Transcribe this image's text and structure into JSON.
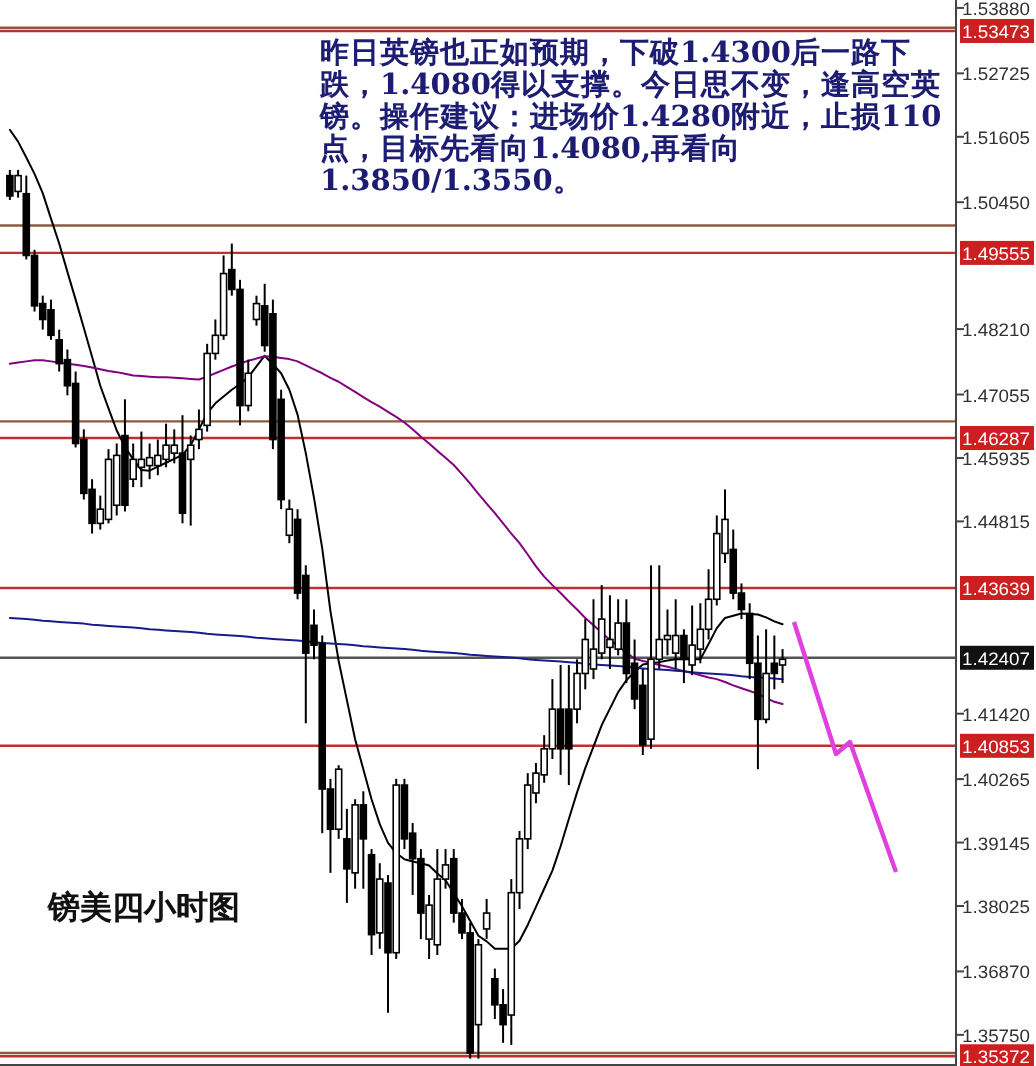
{
  "chart_data": {
    "type": "candlestick",
    "categories": [
      null,
      null,
      null,
      null,
      null,
      null,
      null,
      null,
      null,
      null,
      null,
      null,
      null,
      null,
      null,
      null,
      null,
      null,
      null,
      null,
      null,
      null,
      null,
      null,
      null,
      null,
      null,
      null,
      null,
      null,
      null,
      null,
      null,
      null,
      null,
      null,
      null,
      null,
      null,
      null,
      null,
      null,
      null,
      null,
      null,
      null,
      null,
      null,
      null,
      null,
      null,
      null,
      null,
      null,
      null,
      null,
      null,
      null,
      null,
      null,
      null,
      null,
      null,
      null,
      null,
      null,
      null,
      null,
      null,
      null,
      null,
      null,
      null,
      null,
      null,
      null,
      null,
      null,
      null,
      null,
      null,
      null,
      null,
      null,
      null,
      null,
      null,
      null,
      null,
      null,
      null,
      null,
      null,
      null,
      null
    ],
    "ohlc": [
      [
        1.5092,
        1.5102,
        1.5049,
        1.5056
      ],
      [
        1.5064,
        1.5102,
        1.5053,
        1.5092
      ],
      [
        1.506,
        1.5092,
        1.4944,
        1.4951
      ],
      [
        1.4951,
        1.4961,
        1.4852,
        1.4862
      ],
      [
        1.4866,
        1.488,
        1.482,
        1.4838
      ],
      [
        1.4855,
        1.4873,
        1.4802,
        1.481
      ],
      [
        1.4802,
        1.482,
        1.4746,
        1.476
      ],
      [
        1.4767,
        1.4785,
        1.4704,
        1.4721
      ],
      [
        1.4725,
        1.4746,
        1.4612,
        1.4619
      ],
      [
        1.4626,
        1.4644,
        1.452,
        1.4531
      ],
      [
        1.4538,
        1.4556,
        1.446,
        1.4478
      ],
      [
        1.4478,
        1.4527,
        1.4467,
        1.4503
      ],
      [
        1.4485,
        1.4609,
        1.4478,
        1.4591
      ],
      [
        1.451,
        1.4619,
        1.4492,
        1.4598
      ],
      [
        1.4633,
        1.4697,
        1.4499,
        1.451
      ],
      [
        1.4556,
        1.4619,
        1.4542,
        1.4591
      ],
      [
        1.4577,
        1.464,
        1.4542,
        1.4591
      ],
      [
        1.458,
        1.4619,
        1.4556,
        1.4594
      ],
      [
        1.458,
        1.4626,
        1.4563,
        1.4598
      ],
      [
        1.4591,
        1.4654,
        1.4577,
        1.4616
      ],
      [
        1.4602,
        1.4644,
        1.4584,
        1.4616
      ],
      [
        1.4602,
        1.4669,
        1.4478,
        1.4496
      ],
      [
        1.4591,
        1.4633,
        1.4474,
        1.4616
      ],
      [
        1.4626,
        1.4679,
        1.4609,
        1.4644
      ],
      [
        1.4651,
        1.4795,
        1.464,
        1.4778
      ],
      [
        1.4778,
        1.4838,
        1.4767,
        1.481
      ],
      [
        1.481,
        1.4951,
        1.4802,
        1.4919
      ],
      [
        1.4926,
        1.4972,
        1.488,
        1.4891
      ],
      [
        1.4891,
        1.4908,
        1.4651,
        1.4686
      ],
      [
        1.4686,
        1.4767,
        1.4676,
        1.4743
      ],
      [
        1.4838,
        1.488,
        1.4827,
        1.4866
      ],
      [
        1.4862,
        1.4901,
        1.4781,
        1.4792
      ],
      [
        1.4848,
        1.4873,
        1.4609,
        1.4626
      ],
      [
        1.4697,
        1.4714,
        1.4503,
        1.452
      ],
      [
        1.4457,
        1.452,
        1.4443,
        1.4503
      ],
      [
        1.4485,
        1.4503,
        1.4344,
        1.4355
      ],
      [
        1.4386,
        1.4404,
        1.4125,
        1.4249
      ],
      [
        1.4298,
        1.4326,
        1.4238,
        1.4263
      ],
      [
        1.4266,
        1.428,
        1.3931,
        1.4009
      ],
      [
        1.4009,
        1.4027,
        1.3861,
        1.3938
      ],
      [
        1.3938,
        1.4051,
        1.3921,
        1.4044
      ],
      [
        1.3921,
        1.3974,
        1.3808,
        1.3868
      ],
      [
        1.3861,
        1.3991,
        1.3833,
        1.3981
      ],
      [
        1.3981,
        1.4005,
        1.3833,
        1.3921
      ],
      [
        1.3893,
        1.3903,
        1.3716,
        1.3752
      ],
      [
        1.3755,
        1.3878,
        1.3727,
        1.385
      ],
      [
        1.3843,
        1.3857,
        1.3614,
        1.372
      ],
      [
        1.372,
        1.4027,
        1.3709,
        1.4016
      ],
      [
        1.4016,
        1.4027,
        1.3903,
        1.3921
      ],
      [
        1.3931,
        1.3949,
        1.3822,
        1.3886
      ],
      [
        1.3886,
        1.3903,
        1.3744,
        1.379
      ],
      [
        1.3744,
        1.3822,
        1.3709,
        1.3804
      ],
      [
        1.3734,
        1.3903,
        1.3716,
        1.385
      ],
      [
        1.385,
        1.3903,
        1.3833,
        1.3875
      ],
      [
        1.3886,
        1.3903,
        1.3773,
        1.379
      ],
      [
        1.379,
        1.3815,
        1.3744,
        1.3755
      ],
      [
        1.3755,
        1.3773,
        1.3533,
        1.3543
      ],
      [
        1.3593,
        1.3744,
        1.3533,
        1.3734
      ],
      [
        1.3762,
        1.3815,
        1.3744,
        1.379
      ],
      [
        1.3674,
        1.3692,
        1.3603,
        1.3628
      ],
      [
        1.3628,
        1.3656,
        1.3561,
        1.3593
      ],
      [
        1.361,
        1.385,
        1.3557,
        1.3826
      ],
      [
        1.3826,
        1.3935,
        1.3797,
        1.3921
      ],
      [
        1.3921,
        1.4037,
        1.3903,
        1.4016
      ],
      [
        1.4002,
        1.4055,
        1.3984,
        1.4037
      ],
      [
        1.4034,
        1.4104,
        1.402,
        1.408
      ],
      [
        1.408,
        1.4203,
        1.4062,
        1.415
      ],
      [
        1.415,
        1.4228,
        1.4034,
        1.408
      ],
      [
        1.415,
        1.4228,
        1.4016,
        1.408
      ],
      [
        1.415,
        1.4238,
        1.4125,
        1.4213
      ],
      [
        1.4213,
        1.4309,
        1.4185,
        1.4273
      ],
      [
        1.4221,
        1.4344,
        1.4203,
        1.4256
      ],
      [
        1.4249,
        1.4369,
        1.4238,
        1.4309
      ],
      [
        1.4259,
        1.4351,
        1.4221,
        1.4273
      ],
      [
        1.4256,
        1.4344,
        1.4245,
        1.4302
      ],
      [
        1.4302,
        1.4344,
        1.4196,
        1.4213
      ],
      [
        1.4231,
        1.4273,
        1.415,
        1.4168
      ],
      [
        1.4192,
        1.4221,
        1.4069,
        1.4087
      ],
      [
        1.4097,
        1.4404,
        1.408,
        1.4238
      ],
      [
        1.4238,
        1.4404,
        1.4221,
        1.4273
      ],
      [
        1.4273,
        1.4326,
        1.4245,
        1.428
      ],
      [
        1.4249,
        1.4344,
        1.4221,
        1.428
      ],
      [
        1.428,
        1.4291,
        1.4196,
        1.4238
      ],
      [
        1.4228,
        1.4333,
        1.421,
        1.4263
      ],
      [
        1.4256,
        1.4337,
        1.4231,
        1.4291
      ],
      [
        1.4291,
        1.4397,
        1.4273,
        1.4344
      ],
      [
        1.4344,
        1.4492,
        1.4333,
        1.446
      ],
      [
        1.4425,
        1.4538,
        1.4408,
        1.4485
      ],
      [
        1.4432,
        1.4467,
        1.4344,
        1.4355
      ],
      [
        1.4355,
        1.4372,
        1.4309,
        1.4326
      ],
      [
        1.4319,
        1.4337,
        1.4203,
        1.4231
      ],
      [
        1.4231,
        1.428,
        1.4044,
        1.4132
      ],
      [
        1.4132,
        1.4291,
        1.4125,
        1.4213
      ],
      [
        1.4231,
        1.428,
        1.4185,
        1.4213
      ],
      [
        1.4228,
        1.4256,
        1.4196,
        1.4238
      ]
    ],
    "series": [
      {
        "type": "line",
        "color": "#000000",
        "values": [
          1.5173,
          1.5152,
          1.5124,
          1.5095,
          1.5061,
          1.5016,
          1.4972,
          1.4922,
          1.4873,
          1.4823,
          1.4772,
          1.4721,
          1.4681,
          1.4642,
          1.4613,
          1.4591,
          1.4572,
          1.4571,
          1.4578,
          1.4585,
          1.4592,
          1.4599,
          1.4616,
          1.4644,
          1.4672,
          1.469,
          1.4702,
          1.4714,
          1.4724,
          1.4736,
          1.4755,
          1.4774,
          1.4759,
          1.4743,
          1.4714,
          1.467,
          1.4602,
          1.4523,
          1.4434,
          1.4323,
          1.4235,
          1.4166,
          1.4097,
          1.4044,
          1.3991,
          1.3947,
          1.3914,
          1.3896,
          1.3885,
          1.3881,
          1.3878,
          1.3874,
          1.386,
          1.3848,
          1.3825,
          1.3802,
          1.3776,
          1.375,
          1.374,
          1.3727,
          1.3727,
          1.3727,
          1.3741,
          1.3769,
          1.3801,
          1.3833,
          1.3865,
          1.3908,
          1.3956,
          1.4003,
          1.4046,
          1.4084,
          1.4122,
          1.4151,
          1.418,
          1.4201,
          1.4216,
          1.4229,
          1.4231,
          1.4233,
          1.4236,
          1.4238,
          1.4238,
          1.4238,
          1.4238,
          1.4265,
          1.4293,
          1.4311,
          1.4315,
          1.4319,
          1.4318,
          1.4317,
          1.4312,
          1.4305,
          1.43
        ]
      },
      {
        "type": "line",
        "color": "#800080",
        "values": [
          1.476,
          1.4762,
          1.4764,
          1.4766,
          1.4766,
          1.4764,
          1.4762,
          1.476,
          1.4758,
          1.4756,
          1.4753,
          1.475,
          1.4747,
          1.4745,
          1.4742,
          1.4739,
          1.4738,
          1.4737,
          1.4736,
          1.4736,
          1.4735,
          1.4734,
          1.4733,
          1.4732,
          1.4737,
          1.4743,
          1.4749,
          1.4755,
          1.476,
          1.4765,
          1.4769,
          1.4773,
          1.4772,
          1.477,
          1.4768,
          1.4764,
          1.4757,
          1.475,
          1.4743,
          1.4735,
          1.4728,
          1.4719,
          1.471,
          1.4701,
          1.4692,
          1.4684,
          1.4675,
          1.4666,
          1.4656,
          1.4644,
          1.4631,
          1.4619,
          1.4606,
          1.4594,
          1.4581,
          1.4565,
          1.4548,
          1.453,
          1.4513,
          1.4496,
          1.4478,
          1.446,
          1.4443,
          1.4423,
          1.4402,
          1.4384,
          1.4369,
          1.4355,
          1.434,
          1.4326,
          1.4311,
          1.4298,
          1.4285,
          1.4272,
          1.4261,
          1.425,
          1.4239,
          1.4235,
          1.4232,
          1.4228,
          1.4225,
          1.4221,
          1.4217,
          1.4214,
          1.421,
          1.4206,
          1.4203,
          1.4198,
          1.4192,
          1.4187,
          1.4182,
          1.4177,
          1.417,
          1.4163,
          1.4159
        ]
      },
      {
        "type": "line",
        "color": "#1a1a8c",
        "values": [
          1.4311,
          1.431,
          1.4309,
          1.4308,
          1.4306,
          1.4305,
          1.4304,
          1.4303,
          1.4302,
          1.4301,
          1.4299,
          1.4298,
          1.4297,
          1.4296,
          1.4295,
          1.4294,
          1.4293,
          1.4291,
          1.429,
          1.4289,
          1.4288,
          1.4287,
          1.4286,
          1.4285,
          1.4283,
          1.4282,
          1.4281,
          1.428,
          1.4279,
          1.4278,
          1.4276,
          1.4275,
          1.4274,
          1.4273,
          1.4272,
          1.4271,
          1.427,
          1.4268,
          1.4267,
          1.4266,
          1.4265,
          1.4264,
          1.4263,
          1.4261,
          1.426,
          1.4259,
          1.4258,
          1.4257,
          1.4256,
          1.4255,
          1.4253,
          1.4252,
          1.4251,
          1.425,
          1.4249,
          1.4248,
          1.4246,
          1.4245,
          1.4244,
          1.4243,
          1.4242,
          1.4241,
          1.424,
          1.4238,
          1.4237,
          1.4236,
          1.4235,
          1.4234,
          1.4233,
          1.4232,
          1.423,
          1.4229,
          1.4228,
          1.4227,
          1.4226,
          1.4225,
          1.4223,
          1.4222,
          1.4221,
          1.422,
          1.4219,
          1.4218,
          1.4217,
          1.4215,
          1.4214,
          1.4213,
          1.4212,
          1.4211,
          1.421,
          1.4208,
          1.4207,
          1.4206,
          1.4205,
          1.4204,
          1.4203
        ]
      }
    ],
    "ylim": [
      1.352,
      1.5402
    ],
    "yticks": [
      {
        "value": 1.5388,
        "label": "1.53880"
      },
      {
        "value": 1.52725,
        "label": "1.52725"
      },
      {
        "value": 1.51605,
        "label": "1.51605"
      },
      {
        "value": 1.5045,
        "label": "1.50450"
      },
      {
        "value": 1.4821,
        "label": "1.48210"
      },
      {
        "value": 1.47055,
        "label": "1.47055"
      },
      {
        "value": 1.45935,
        "label": "1.45935"
      },
      {
        "value": 1.44815,
        "label": "1.44815"
      },
      {
        "value": 1.4142,
        "label": "1.41420"
      },
      {
        "value": 1.40265,
        "label": "1.40265"
      },
      {
        "value": 1.39145,
        "label": "1.39145"
      },
      {
        "value": 1.38025,
        "label": "1.38025"
      },
      {
        "value": 1.3687,
        "label": "1.36870"
      },
      {
        "value": 1.3575,
        "label": "1.35750"
      }
    ],
    "tick_labels": "y",
    "ref_lines": [
      {
        "axis": "y",
        "value": 1.5353,
        "label": null,
        "color": "#8b5a3c"
      },
      {
        "axis": "y",
        "value": 1.53473,
        "label": "1.53473",
        "color": "#c03030"
      },
      {
        "axis": "y",
        "value": 1.5004,
        "label": null,
        "color": "#8b5a3c"
      },
      {
        "axis": "y",
        "value": 1.49555,
        "label": "1.49555",
        "color": "#c03030"
      },
      {
        "axis": "y",
        "value": 1.4658,
        "label": null,
        "color": "#8b5a3c"
      },
      {
        "axis": "y",
        "value": 1.46287,
        "label": "1.46287",
        "color": "#c03030"
      },
      {
        "axis": "y",
        "value": 1.43639,
        "label": "1.43639",
        "color": "#c03030"
      },
      {
        "axis": "y",
        "value": 1.42407,
        "label": "1.42407",
        "color": "#555555"
      },
      {
        "axis": "y",
        "value": 1.40853,
        "label": "1.40853",
        "color": "#c03030"
      },
      {
        "axis": "y",
        "value": 1.3543,
        "label": null,
        "color": "#8b5a3c"
      },
      {
        "axis": "y",
        "value": 1.35372,
        "label": "1.35372",
        "color": "#c03030"
      }
    ],
    "annotations": [
      "昨日英镑也正如预期，下破1.4300后一路下跌，1.4080得以支撑。今日思不变，逢高空英镑。操作建议：进场价1.4280附近，止损110点，目标先看向1.4080,再看向1.3850/1.3550。",
      "镑美四小时图"
    ]
  }
}
